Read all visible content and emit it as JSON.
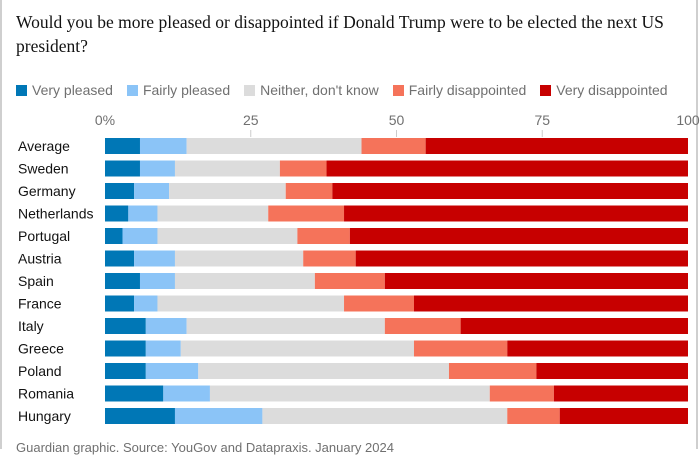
{
  "question": "Would you be more pleased or disappointed if Donald Trump were to be elected the next US president?",
  "footer": "Guardian graphic. Source: YouGov and Datapraxis. January 2024",
  "chart_data": {
    "type": "bar",
    "orientation": "horizontal",
    "stacked": true,
    "title": "Would you be more pleased or disappointed if Donald Trump were to be elected the next US president?",
    "xlim": [
      0,
      100
    ],
    "ticks": [
      "0%",
      "25",
      "50",
      "75",
      "100"
    ],
    "tick_values": [
      0,
      25,
      50,
      75,
      100
    ],
    "legend_placement": "top",
    "categories": [
      "Average",
      "Sweden",
      "Germany",
      "Netherlands",
      "Portugal",
      "Austria",
      "Spain",
      "France",
      "Italy",
      "Greece",
      "Poland",
      "Romania",
      "Hungary"
    ],
    "series": [
      {
        "name": "Very pleased",
        "color": "#0077b6",
        "values": [
          6,
          6,
          5,
          4,
          3,
          5,
          6,
          5,
          7,
          7,
          7,
          10,
          12
        ]
      },
      {
        "name": "Fairly pleased",
        "color": "#8bc4f7",
        "values": [
          8,
          6,
          6,
          5,
          6,
          7,
          6,
          4,
          7,
          6,
          9,
          8,
          15
        ]
      },
      {
        "name": "Neither, don't know",
        "color": "#dcdcdc",
        "values": [
          30,
          18,
          20,
          19,
          24,
          22,
          24,
          32,
          34,
          40,
          43,
          48,
          42
        ]
      },
      {
        "name": "Fairly disappointed",
        "color": "#f5735a",
        "values": [
          11,
          8,
          8,
          13,
          9,
          9,
          12,
          12,
          13,
          16,
          15,
          11,
          9
        ]
      },
      {
        "name": "Very disappointed",
        "color": "#c70000",
        "values": [
          45,
          62,
          61,
          59,
          58,
          57,
          52,
          47,
          39,
          31,
          26,
          23,
          22
        ]
      }
    ]
  }
}
